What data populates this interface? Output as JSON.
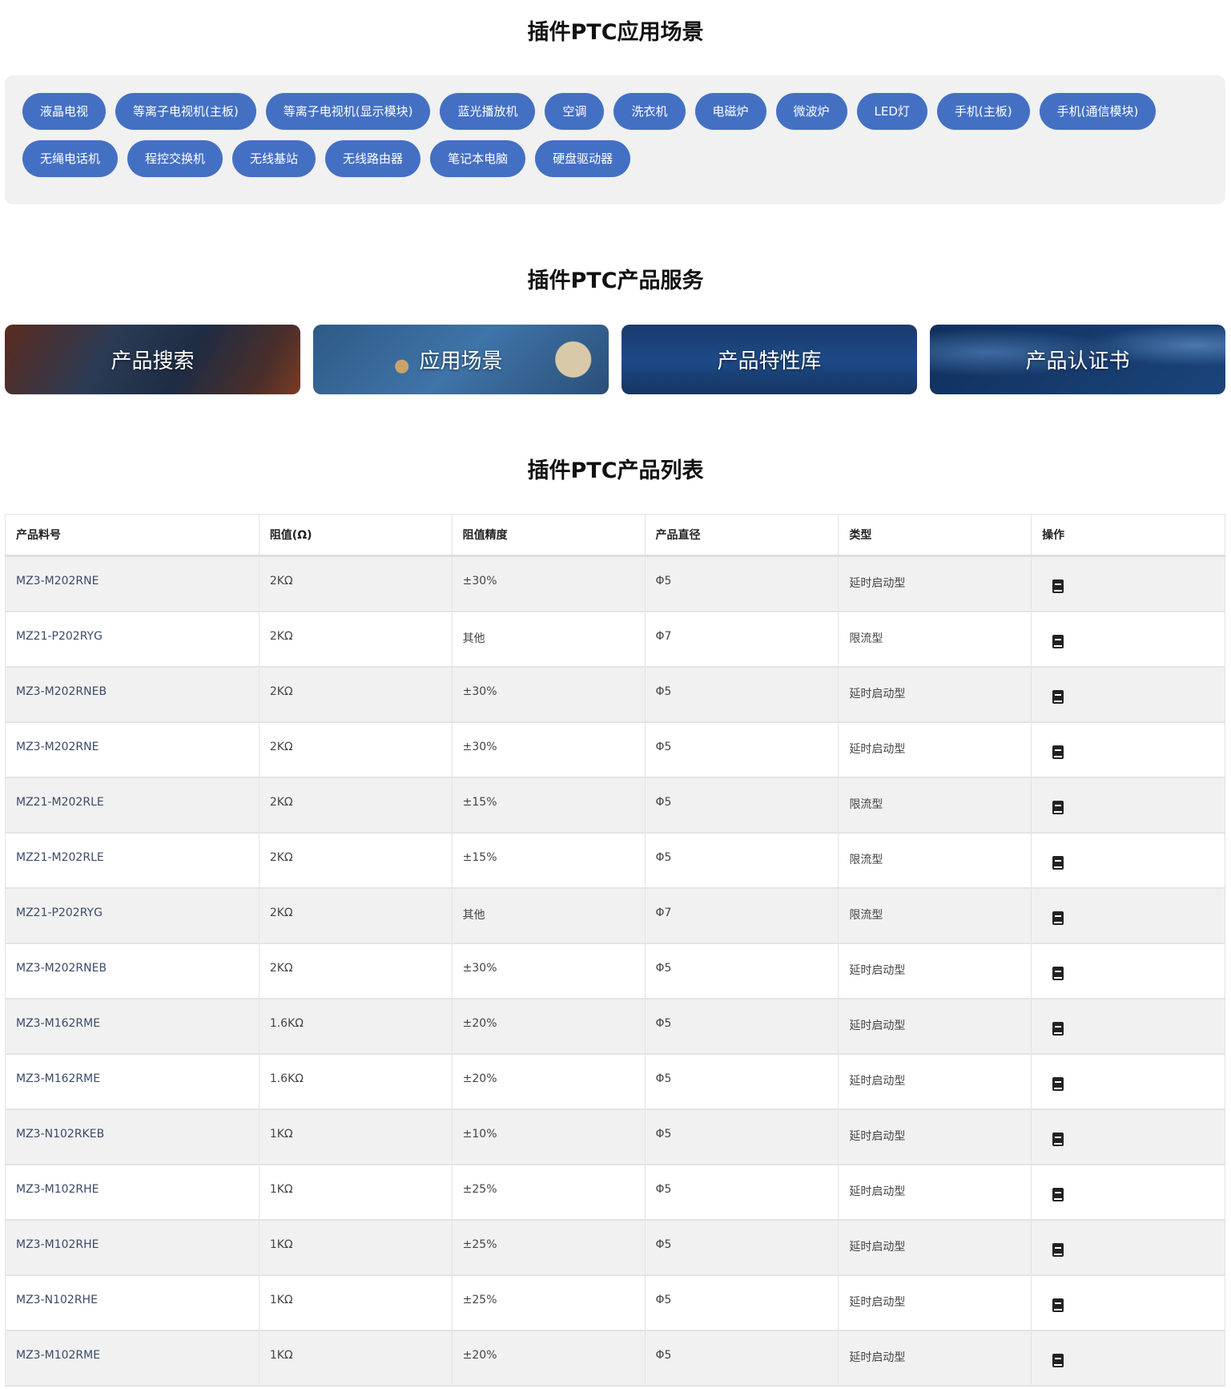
{
  "sections": {
    "scenes_title": "插件PTC应用场景",
    "services_title": "插件PTC产品服务",
    "list_title": "插件PTC产品列表"
  },
  "tags": [
    "液晶电视",
    "等离子电视机(主板)",
    "等离子电视机(显示模块)",
    "蓝光播放机",
    "空调",
    "洗衣机",
    "电磁炉",
    "微波炉",
    "LED灯",
    "手机(主板)",
    "手机(通信模块)",
    "无绳电话机",
    "程控交换机",
    "无线基站",
    "无线路由器",
    "笔记本电脑",
    "硬盘驱动器"
  ],
  "services": [
    "产品搜索",
    "应用场景",
    "产品特性库",
    "产品认证书"
  ],
  "table": {
    "headers": [
      "产品料号",
      "阻值(Ω)",
      "阻值精度",
      "产品直径",
      "类型",
      "操作"
    ],
    "action_icon": "book-icon",
    "rows": [
      [
        "MZ3-M202RNE",
        "2KΩ",
        "±30%",
        "Φ5",
        "延时启动型"
      ],
      [
        "MZ21-P202RYG",
        "2KΩ",
        "其他",
        "Φ7",
        "限流型"
      ],
      [
        "MZ3-M202RNEB",
        "2KΩ",
        "±30%",
        "Φ5",
        "延时启动型"
      ],
      [
        "MZ3-M202RNE",
        "2KΩ",
        "±30%",
        "Φ5",
        "延时启动型"
      ],
      [
        "MZ21-M202RLE",
        "2KΩ",
        "±15%",
        "Φ5",
        "限流型"
      ],
      [
        "MZ21-M202RLE",
        "2KΩ",
        "±15%",
        "Φ5",
        "限流型"
      ],
      [
        "MZ21-P202RYG",
        "2KΩ",
        "其他",
        "Φ7",
        "限流型"
      ],
      [
        "MZ3-M202RNEB",
        "2KΩ",
        "±30%",
        "Φ5",
        "延时启动型"
      ],
      [
        "MZ3-M162RME",
        "1.6KΩ",
        "±20%",
        "Φ5",
        "延时启动型"
      ],
      [
        "MZ3-M162RME",
        "1.6KΩ",
        "±20%",
        "Φ5",
        "延时启动型"
      ],
      [
        "MZ3-N102RKEB",
        "1KΩ",
        "±10%",
        "Φ5",
        "延时启动型"
      ],
      [
        "MZ3-M102RHE",
        "1KΩ",
        "±25%",
        "Φ5",
        "延时启动型"
      ],
      [
        "MZ3-M102RHE",
        "1KΩ",
        "±25%",
        "Φ5",
        "延时启动型"
      ],
      [
        "MZ3-N102RHE",
        "1KΩ",
        "±25%",
        "Φ5",
        "延时启动型"
      ],
      [
        "MZ3-M102RME",
        "1KΩ",
        "±20%",
        "Φ5",
        "延时启动型"
      ]
    ]
  },
  "colors": {
    "tag": "#4470c4",
    "tag_box": "#f1f1f1",
    "row_alt": "#f1f1f1"
  }
}
